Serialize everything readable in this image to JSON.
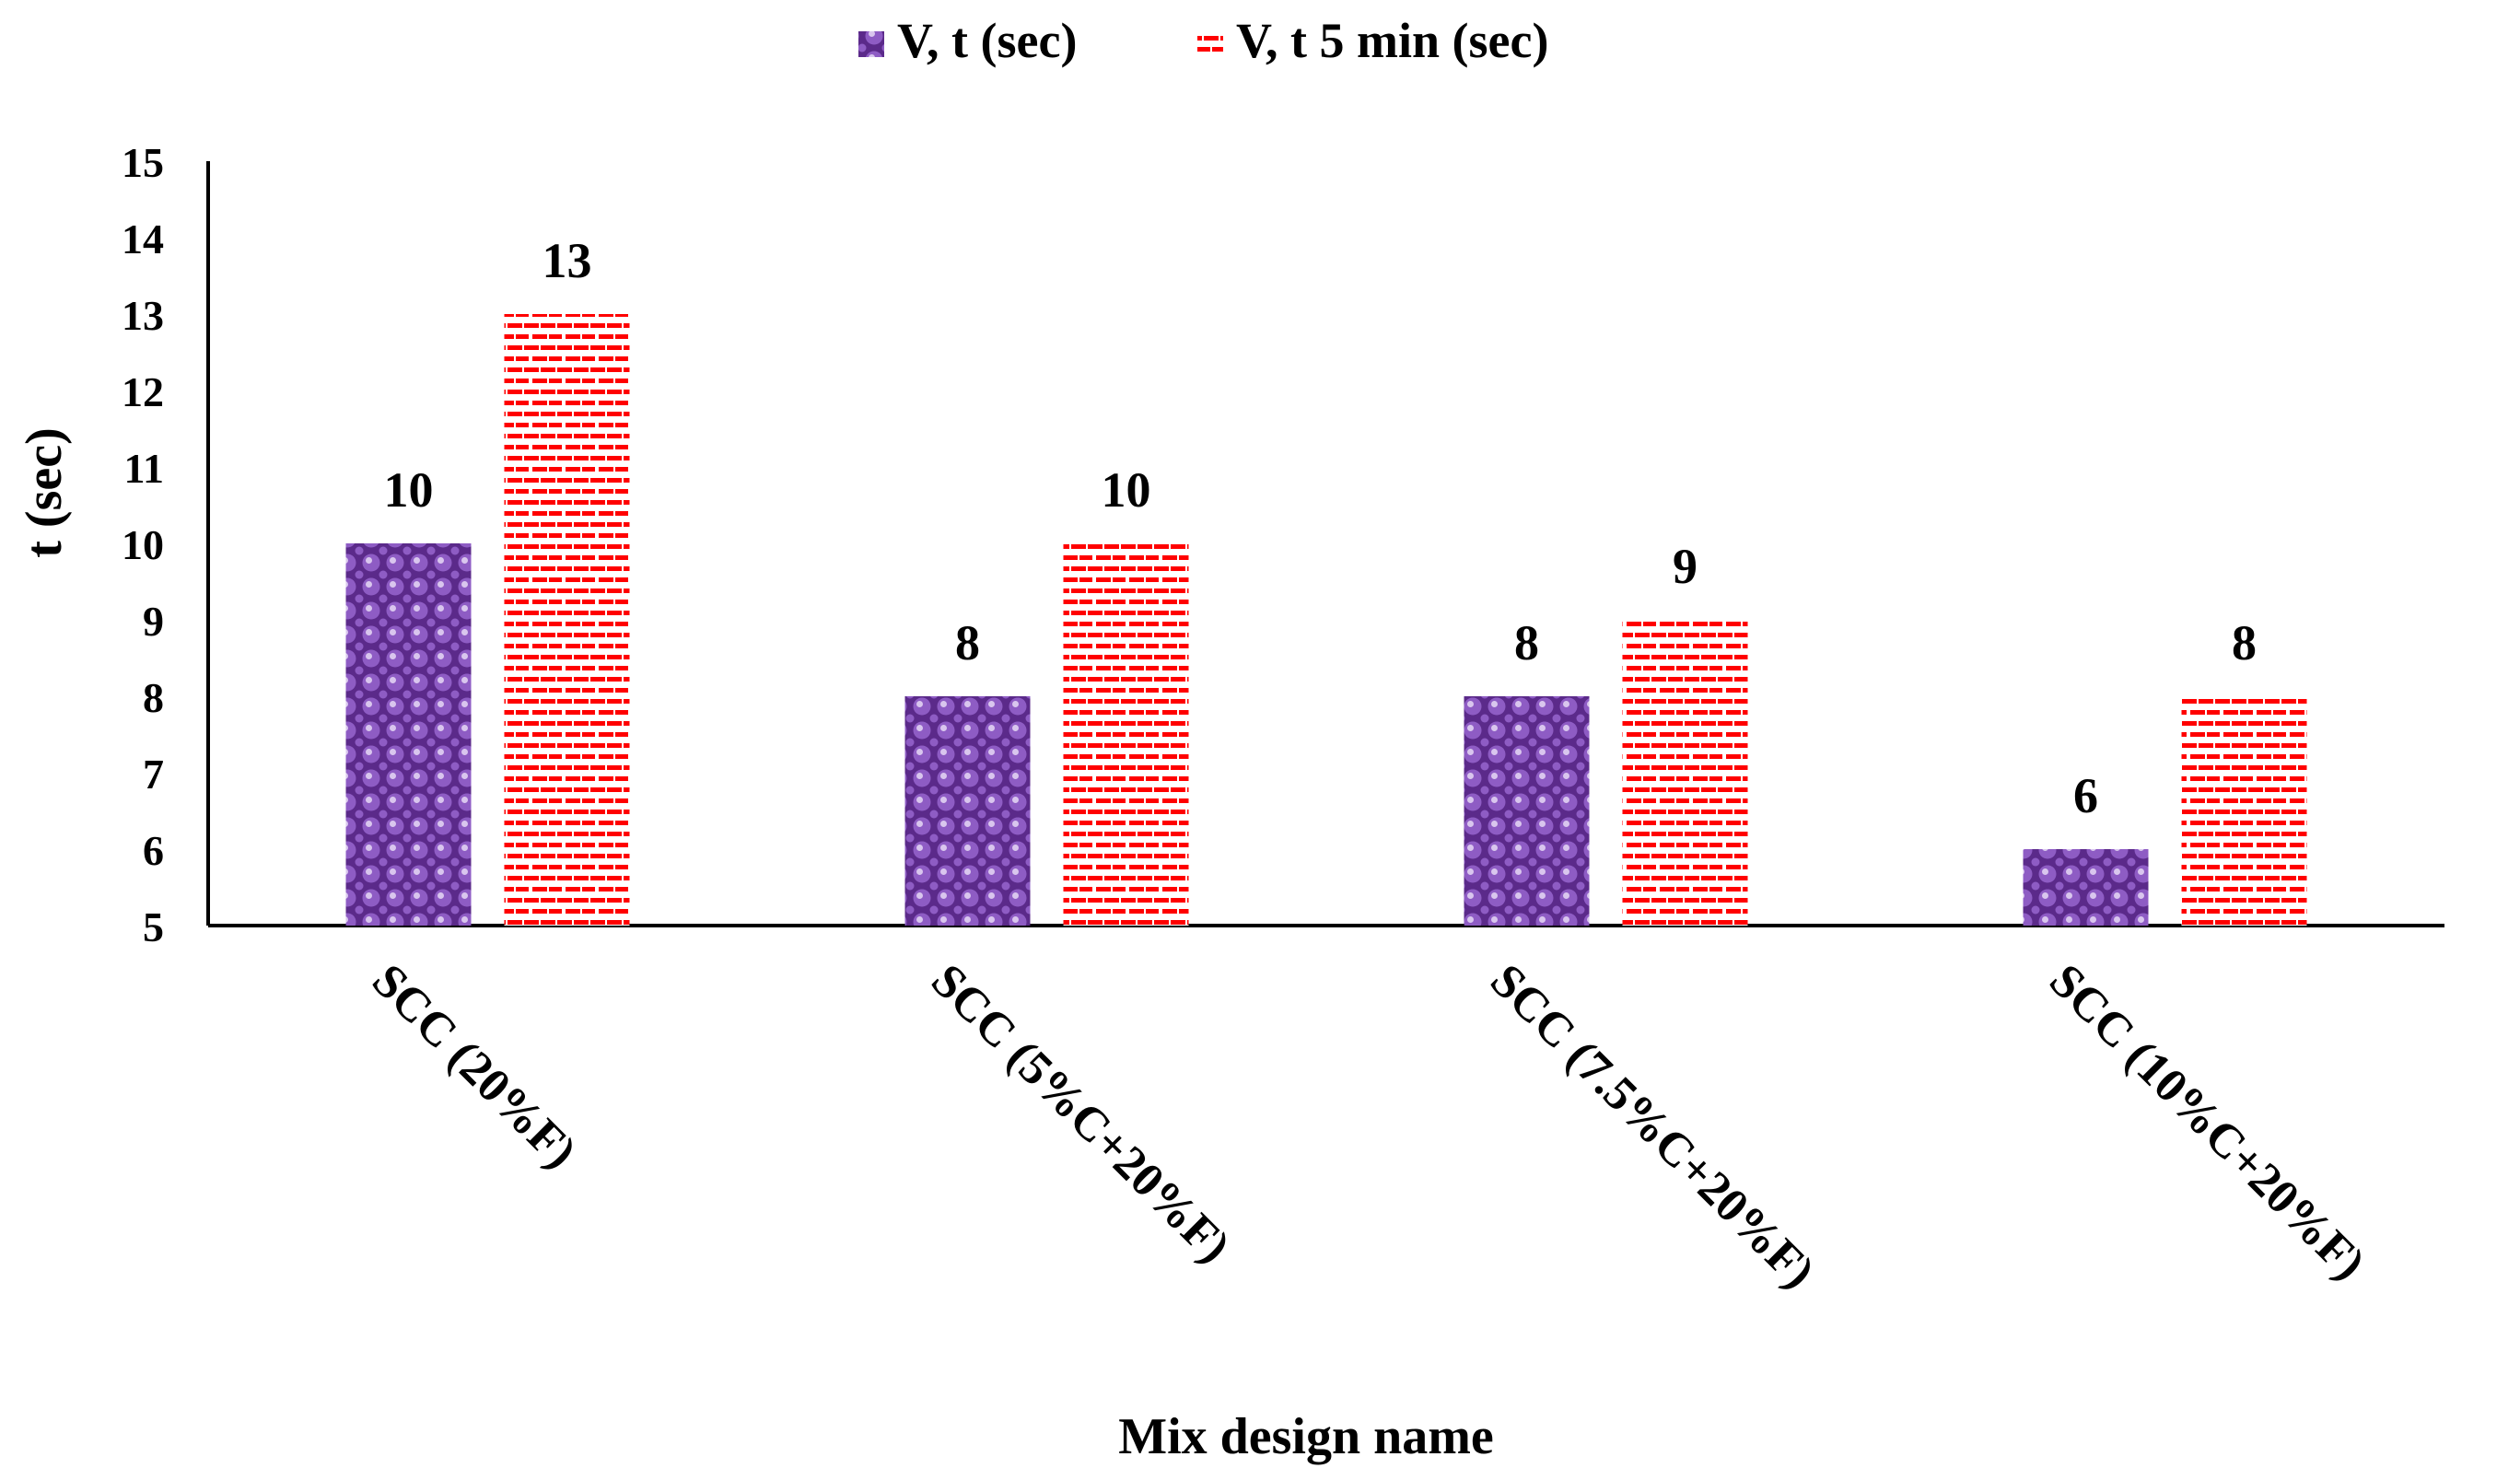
{
  "chart_data": {
    "type": "bar",
    "title": "",
    "xlabel": "Mix design name",
    "ylabel": "t (sec)",
    "ylim": [
      5,
      15
    ],
    "y_ticks": [
      5,
      6,
      7,
      8,
      9,
      10,
      11,
      12,
      13,
      14,
      15
    ],
    "categories": [
      "SCC (20%F)",
      "SCC (5%C+20%F)",
      "SCC (7.5%C+20%F)",
      "SCC (10%C+20%F)"
    ],
    "series": [
      {
        "name": "V, t (sec)",
        "values": [
          10,
          8,
          8,
          6
        ],
        "color": "#7030A0",
        "pattern": "dotted-circles"
      },
      {
        "name": "V, t 5 min (sec)",
        "values": [
          13,
          10,
          9,
          8
        ],
        "color": "#FF0000",
        "pattern": "dashed-horizontal"
      }
    ],
    "legend_position": "top-center",
    "grid": false,
    "data_labels": true
  }
}
